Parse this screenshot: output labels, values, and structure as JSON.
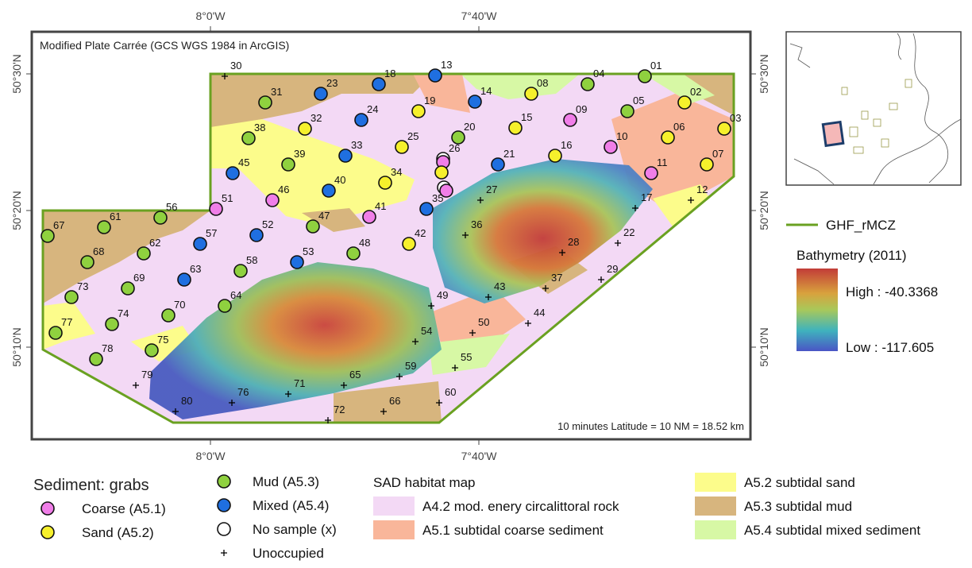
{
  "map": {
    "projection_note": "Modified Plate Carrée (GCS WGS 1984 in ArcGIS)",
    "scale_note": "10 minutes Latitude = 10 NM = 18.52 km",
    "lon_labels": [
      "8°0'W",
      "7°40'W"
    ],
    "lat_labels": [
      "50°30'N",
      "50°20'N",
      "50°10'N"
    ],
    "stations": [
      {
        "id": "01",
        "type": "Mud (A5.3)"
      },
      {
        "id": "02",
        "type": "Sand (A5.2)"
      },
      {
        "id": "03",
        "type": "Sand (A5.2)"
      },
      {
        "id": "04",
        "type": "Mud (A5.3)"
      },
      {
        "id": "05",
        "type": "Mud (A5.3)"
      },
      {
        "id": "06",
        "type": "Sand (A5.2)"
      },
      {
        "id": "07",
        "type": "Sand (A5.2)"
      },
      {
        "id": "08",
        "type": "Sand (A5.2)"
      },
      {
        "id": "09",
        "type": "Coarse (A5.1)"
      },
      {
        "id": "10",
        "type": "Coarse (A5.1)"
      },
      {
        "id": "11",
        "type": "Coarse (A5.1)"
      },
      {
        "id": "12",
        "type": "Unoccupied"
      },
      {
        "id": "13",
        "type": "Mixed (A5.4)"
      },
      {
        "id": "14",
        "type": "Mixed (A5.4)"
      },
      {
        "id": "15",
        "type": "Sand (A5.2)"
      },
      {
        "id": "16",
        "type": "Sand (A5.2)"
      },
      {
        "id": "17",
        "type": "Unoccupied"
      },
      {
        "id": "18",
        "type": "Mixed (A5.4)"
      },
      {
        "id": "19",
        "type": "Sand (A5.2)"
      },
      {
        "id": "20",
        "type": "Mud (A5.3)"
      },
      {
        "id": "21",
        "type": "Mixed (A5.4)"
      },
      {
        "id": "22",
        "type": "Unoccupied"
      },
      {
        "id": "23",
        "type": "Mixed (A5.4)"
      },
      {
        "id": "24",
        "type": "Mixed (A5.4)"
      },
      {
        "id": "25",
        "type": "Sand (A5.2)"
      },
      {
        "id": "26",
        "type": "No sample (x)"
      },
      {
        "id": "27",
        "type": "Unoccupied"
      },
      {
        "id": "28",
        "type": "Unoccupied"
      },
      {
        "id": "29",
        "type": "Unoccupied"
      },
      {
        "id": "30",
        "type": "Unoccupied"
      },
      {
        "id": "31",
        "type": "Mud (A5.3)"
      },
      {
        "id": "32",
        "type": "Sand (A5.2)"
      },
      {
        "id": "33",
        "type": "Mixed (A5.4)"
      },
      {
        "id": "34",
        "type": "Sand (A5.2)"
      },
      {
        "id": "35",
        "type": "Mixed (A5.4)"
      },
      {
        "id": "36",
        "type": "Unoccupied"
      },
      {
        "id": "37",
        "type": "Unoccupied"
      },
      {
        "id": "38",
        "type": "Mud (A5.3)"
      },
      {
        "id": "39",
        "type": "Mud (A5.3)"
      },
      {
        "id": "40",
        "type": "Mixed (A5.4)"
      },
      {
        "id": "41",
        "type": "Coarse (A5.1)"
      },
      {
        "id": "42",
        "type": "Sand (A5.2)"
      },
      {
        "id": "43",
        "type": "Unoccupied"
      },
      {
        "id": "44",
        "type": "Unoccupied"
      },
      {
        "id": "45",
        "type": "Mixed (A5.4)"
      },
      {
        "id": "46",
        "type": "Coarse (A5.1)"
      },
      {
        "id": "47",
        "type": "Mud (A5.3)"
      },
      {
        "id": "48",
        "type": "Mud (A5.3)"
      },
      {
        "id": "49",
        "type": "Unoccupied"
      },
      {
        "id": "50",
        "type": "Unoccupied"
      },
      {
        "id": "51",
        "type": "Coarse (A5.1)"
      },
      {
        "id": "52",
        "type": "Mixed (A5.4)"
      },
      {
        "id": "53",
        "type": "Mixed (A5.4)"
      },
      {
        "id": "54",
        "type": "Unoccupied"
      },
      {
        "id": "55",
        "type": "Unoccupied"
      },
      {
        "id": "56",
        "type": "Mud (A5.3)"
      },
      {
        "id": "57",
        "type": "Mixed (A5.4)"
      },
      {
        "id": "58",
        "type": "Mud (A5.3)"
      },
      {
        "id": "59",
        "type": "Unoccupied"
      },
      {
        "id": "60",
        "type": "Unoccupied"
      },
      {
        "id": "61",
        "type": "Mud (A5.3)"
      },
      {
        "id": "62",
        "type": "Mud (A5.3)"
      },
      {
        "id": "63",
        "type": "Mixed (A5.4)"
      },
      {
        "id": "64",
        "type": "Mud (A5.3)"
      },
      {
        "id": "65",
        "type": "Unoccupied"
      },
      {
        "id": "66",
        "type": "Unoccupied"
      },
      {
        "id": "67",
        "type": "Mud (A5.3)"
      },
      {
        "id": "68",
        "type": "Mud (A5.3)"
      },
      {
        "id": "69",
        "type": "Mud (A5.3)"
      },
      {
        "id": "70",
        "type": "Mud (A5.3)"
      },
      {
        "id": "71",
        "type": "Unoccupied"
      },
      {
        "id": "72",
        "type": "Unoccupied"
      },
      {
        "id": "73",
        "type": "Mud (A5.3)"
      },
      {
        "id": "74",
        "type": "Mud (A5.3)"
      },
      {
        "id": "75",
        "type": "Mud (A5.3)"
      },
      {
        "id": "76",
        "type": "Unoccupied"
      },
      {
        "id": "77",
        "type": "Mud (A5.3)"
      },
      {
        "id": "78",
        "type": "Mud (A5.3)"
      },
      {
        "id": "79",
        "type": "Unoccupied"
      },
      {
        "id": "80",
        "type": "Unoccupied"
      },
      {
        "id": null,
        "type": "Coarse (A5.1)"
      },
      {
        "id": null,
        "type": "Sand (A5.2)"
      },
      {
        "id": null,
        "type": "No sample (x)"
      },
      {
        "id": null,
        "type": "Coarse (A5.1)"
      }
    ]
  },
  "legend": {
    "boundary": {
      "label": "GHF_rMCZ",
      "color": "#6aa121"
    },
    "bathymetry": {
      "title": "Bathymetry (2011)",
      "high": "High : -40.3368",
      "low": "Low : -117.605"
    },
    "sediment": {
      "title": "Sediment: grabs",
      "items": [
        {
          "label": "Coarse (A5.1)",
          "color": "#f07ee8"
        },
        {
          "label": "Sand (A5.2)",
          "color": "#f6f02c"
        },
        {
          "label": "Mud (A5.3)",
          "color": "#8fd13f"
        },
        {
          "label": "Mixed (A5.4)",
          "color": "#1f6fe0"
        },
        {
          "label": "No sample (x)",
          "color": "#ffffff"
        },
        {
          "label": "Unoccupied",
          "color": "#000000"
        }
      ]
    },
    "habitat": {
      "title": "SAD habitat map",
      "items": [
        {
          "label": "A4.2 mod. enery circalittoral rock",
          "color": "#f3d9f5"
        },
        {
          "label": "A5.1 subtidal coarse sediment",
          "color": "#f9b69a"
        },
        {
          "label": "A5.2 subtidal sand",
          "color": "#fcfc8b"
        },
        {
          "label": "A5.3 subtidal mud",
          "color": "#d7b57e"
        },
        {
          "label": "A5.4 subtidal mixed sediment",
          "color": "#d7f8a5"
        }
      ]
    }
  }
}
